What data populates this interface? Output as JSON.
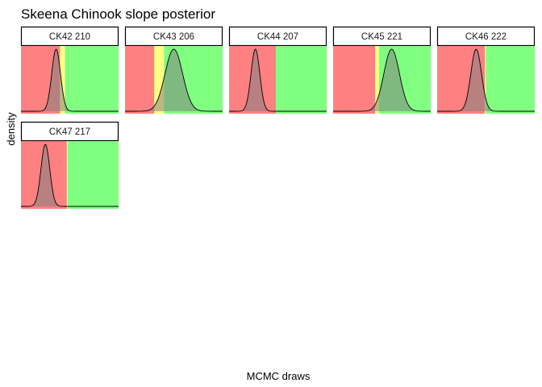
{
  "chart_data": {
    "type": "area",
    "title": "Skeena Chinook slope posterior",
    "xlabel": "MCMC draws",
    "ylabel": "density",
    "zone_colors": {
      "low": "#ff8080",
      "mid": "#ffff80",
      "high": "#80ff80",
      "density_fill": "#808080"
    },
    "panels": [
      {
        "label": "CK42 210",
        "mean": 0.36,
        "sd": 0.045,
        "red_end": 0.4,
        "yellow_end": 0.45
      },
      {
        "label": "CK43 206",
        "mean": 0.5,
        "sd": 0.09,
        "red_end": 0.3,
        "yellow_end": 0.4
      },
      {
        "label": "CK44 207",
        "mean": 0.27,
        "sd": 0.045,
        "red_end": 0.48,
        "yellow_end": 0.48
      },
      {
        "label": "CK45 221",
        "mean": 0.6,
        "sd": 0.08,
        "red_end": 0.43,
        "yellow_end": 0.47
      },
      {
        "label": "CK46 222",
        "mean": 0.4,
        "sd": 0.055,
        "red_end": 0.49,
        "yellow_end": 0.5
      },
      {
        "label": "CK47 217",
        "mean": 0.25,
        "sd": 0.045,
        "red_end": 0.47,
        "yellow_end": 0.48
      }
    ]
  }
}
